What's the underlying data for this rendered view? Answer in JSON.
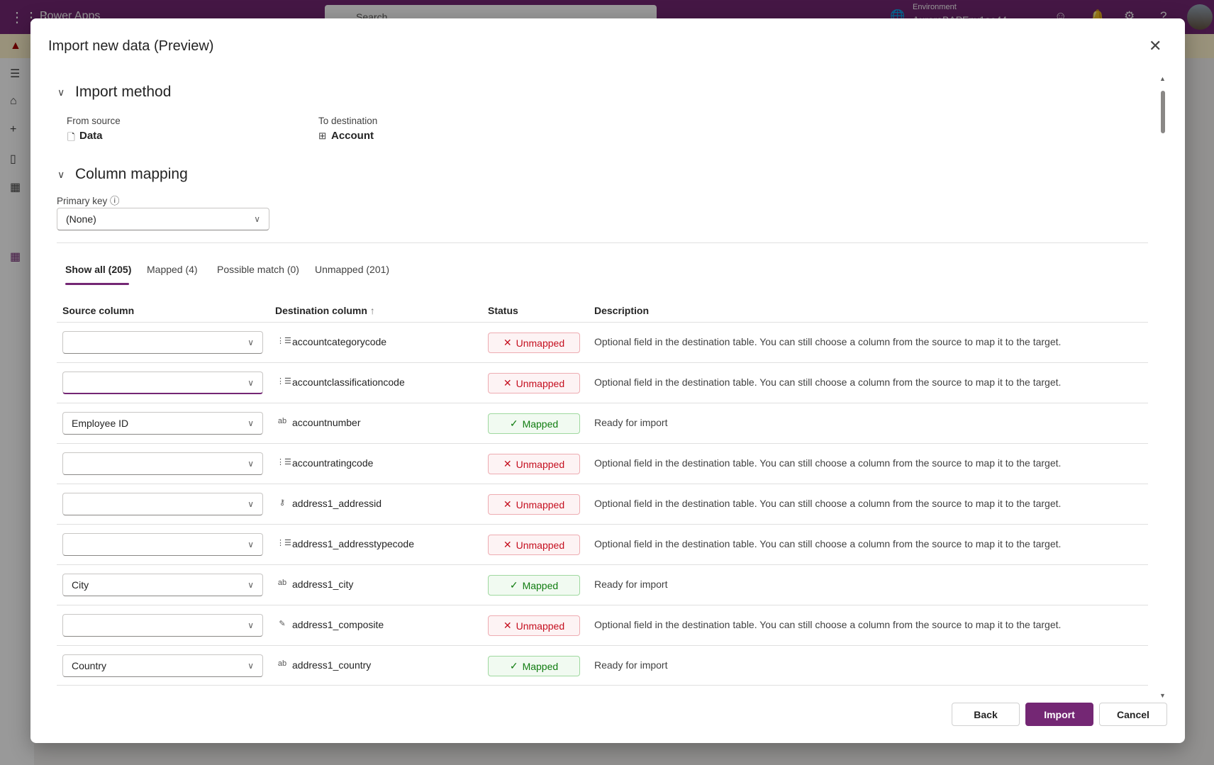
{
  "topbar": {
    "app_name": "Power Apps",
    "search_placeholder": "Search",
    "env_label": "Environment",
    "env_name": "AuroraBAPEnv1ae44",
    "brand_color": "#742774"
  },
  "dialog": {
    "title": "Import new data (Preview)",
    "import_method": {
      "heading": "Import method",
      "from_label": "From source",
      "from_value": "Data",
      "to_label": "To destination",
      "to_value": "Account"
    },
    "column_mapping": {
      "heading": "Column mapping",
      "primary_key_label": "Primary key",
      "primary_key_value": "(None)"
    },
    "tabs": [
      {
        "label": "Show all (205)",
        "active": true
      },
      {
        "label": "Mapped (4)"
      },
      {
        "label": "Possible match (0)"
      },
      {
        "label": "Unmapped (201)"
      }
    ],
    "table": {
      "headers": {
        "source": "Source column",
        "destination": "Destination column",
        "destination_sort": "↑",
        "status": "Status",
        "description": "Description"
      },
      "rows": [
        {
          "source": "",
          "icon": "choice-list-icon",
          "destination": "accountcategorycode",
          "status": "Unmapped",
          "description": "Optional field in the destination table. You can still choose a column from the source to map it to the target."
        },
        {
          "source": "",
          "icon": "choice-list-icon",
          "destination": "accountclassificationcode",
          "status": "Unmapped",
          "description": "Optional field in the destination table. You can still choose a column from the source to map it to the target.",
          "focused": true
        },
        {
          "source": "Employee ID",
          "icon": "text-field-icon",
          "destination": "accountnumber",
          "status": "Mapped",
          "description": "Ready for import"
        },
        {
          "source": "",
          "icon": "choice-list-icon",
          "destination": "accountratingcode",
          "status": "Unmapped",
          "description": "Optional field in the destination table. You can still choose a column from the source to map it to the target."
        },
        {
          "source": "",
          "icon": "key-icon",
          "destination": "address1_addressid",
          "status": "Unmapped",
          "description": "Optional field in the destination table. You can still choose a column from the source to map it to the target."
        },
        {
          "source": "",
          "icon": "choice-list-icon",
          "destination": "address1_addresstypecode",
          "status": "Unmapped",
          "description": "Optional field in the destination table. You can still choose a column from the source to map it to the target."
        },
        {
          "source": "City",
          "icon": "text-field-icon",
          "destination": "address1_city",
          "status": "Mapped",
          "description": "Ready for import"
        },
        {
          "source": "",
          "icon": "multiline-text-icon",
          "destination": "address1_composite",
          "status": "Unmapped",
          "description": "Optional field in the destination table. You can still choose a column from the source to map it to the target."
        },
        {
          "source": "Country",
          "icon": "text-field-icon",
          "destination": "address1_country",
          "status": "Mapped",
          "description": "Ready for import"
        }
      ]
    },
    "buttons": {
      "back": "Back",
      "import": "Import",
      "cancel": "Cancel"
    }
  }
}
